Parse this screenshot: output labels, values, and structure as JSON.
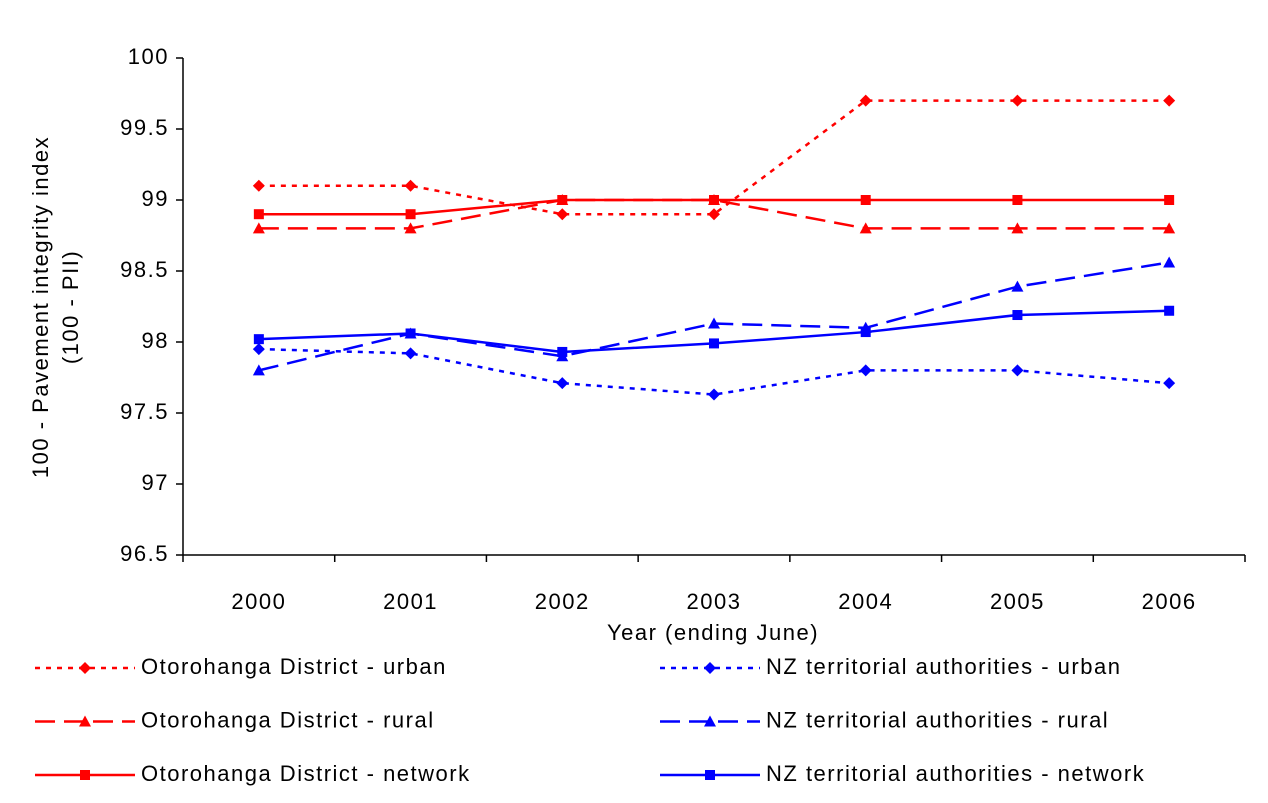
{
  "chart_data": {
    "type": "line",
    "y_label": [
      "100 - Pavement integrity index",
      "(100 - PII)"
    ],
    "x_label": "Year (ending June)",
    "categories": [
      "2000",
      "2001",
      "2002",
      "2003",
      "2004",
      "2005",
      "2006"
    ],
    "ylim": [
      96.5,
      100
    ],
    "yticks": [
      96.5,
      97,
      97.5,
      98,
      98.5,
      99,
      99.5,
      100
    ],
    "series": [
      {
        "name": "Otorohanga District - urban",
        "color": "#ff0000",
        "dash": "dotted",
        "marker": "diamond",
        "values": [
          99.1,
          99.1,
          98.9,
          98.9,
          99.7,
          99.7,
          99.7
        ]
      },
      {
        "name": "Otorohanga District - rural",
        "color": "#ff0000",
        "dash": "long",
        "marker": "triangle",
        "values": [
          98.8,
          98.8,
          99.0,
          99.0,
          98.8,
          98.8,
          98.8
        ]
      },
      {
        "name": "Otorohanga District - network",
        "color": "#ff0000",
        "dash": "solid",
        "marker": "square",
        "values": [
          98.9,
          98.9,
          99.0,
          99.0,
          99.0,
          99.0,
          99.0
        ]
      },
      {
        "name": "NZ territorial authorities - urban",
        "color": "#0000ff",
        "dash": "dotted",
        "marker": "diamond",
        "values": [
          97.95,
          97.92,
          97.71,
          97.63,
          97.8,
          97.8,
          97.71
        ]
      },
      {
        "name": "NZ territorial authorities - rural",
        "color": "#0000ff",
        "dash": "long",
        "marker": "triangle",
        "values": [
          97.8,
          98.06,
          97.9,
          98.13,
          98.1,
          98.39,
          98.56
        ]
      },
      {
        "name": "NZ territorial authorities - network",
        "color": "#0000ff",
        "dash": "solid",
        "marker": "square",
        "values": [
          98.02,
          98.06,
          97.93,
          97.99,
          98.07,
          98.19,
          98.22
        ]
      }
    ]
  }
}
